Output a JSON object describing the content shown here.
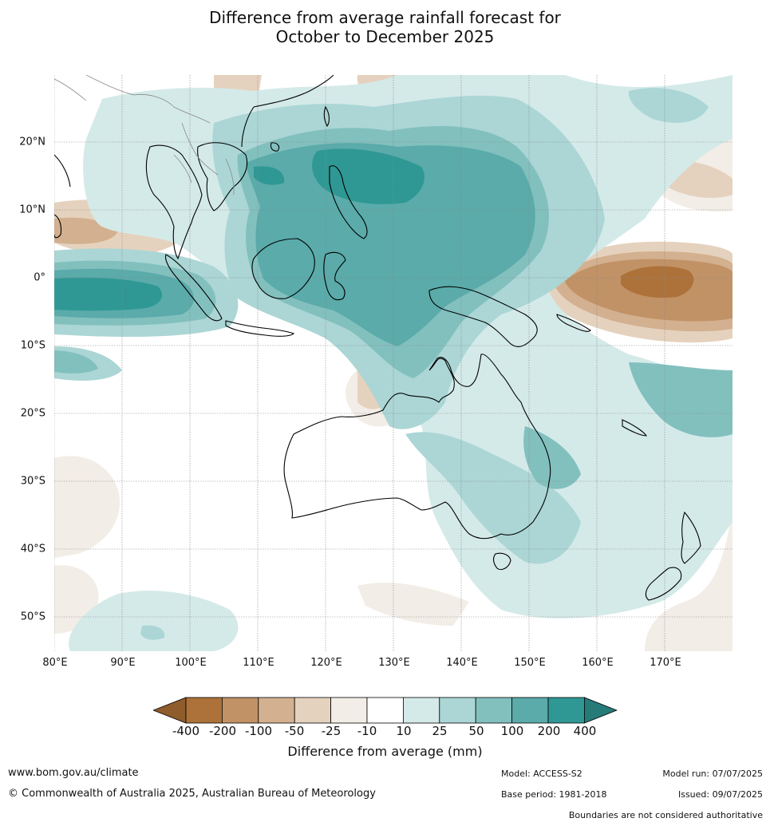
{
  "title": {
    "line1": "Difference from average rainfall forecast for",
    "line2": "October to December 2025"
  },
  "map": {
    "lat_labels": [
      "20°N",
      "10°N",
      "0°",
      "10°S",
      "20°S",
      "30°S",
      "40°S",
      "50°S"
    ],
    "lon_labels": [
      "80°E",
      "90°E",
      "100°E",
      "110°E",
      "120°E",
      "130°E",
      "140°E",
      "150°E",
      "160°E",
      "170°E"
    ],
    "gridlines": true
  },
  "legend": {
    "title": "Difference from average (mm)",
    "ticks": [
      "-400",
      "-200",
      "-100",
      "-50",
      "-25",
      "-10",
      "10",
      "25",
      "50",
      "100",
      "200",
      "400"
    ],
    "colors": [
      "#8f5c2c",
      "#ad723a",
      "#c19266",
      "#d3b08f",
      "#e5d2be",
      "#f2ede6",
      "#ffffff",
      "#d4eae9",
      "#abd6d5",
      "#82c0be",
      "#5aabaa",
      "#2f9894",
      "#267a77"
    ]
  },
  "footer": {
    "website": "www.bom.gov.au/climate",
    "copyright": "© Commonwealth of Australia 2025, Australian Bureau of Meteorology",
    "model": "Model: ACCESS-S2",
    "base_period": "Base period: 1981-2018",
    "model_run": "Model run: 07/07/2025",
    "issued": "Issued: 09/07/2025",
    "disclaimer": "Boundaries are not considered authoritative"
  }
}
